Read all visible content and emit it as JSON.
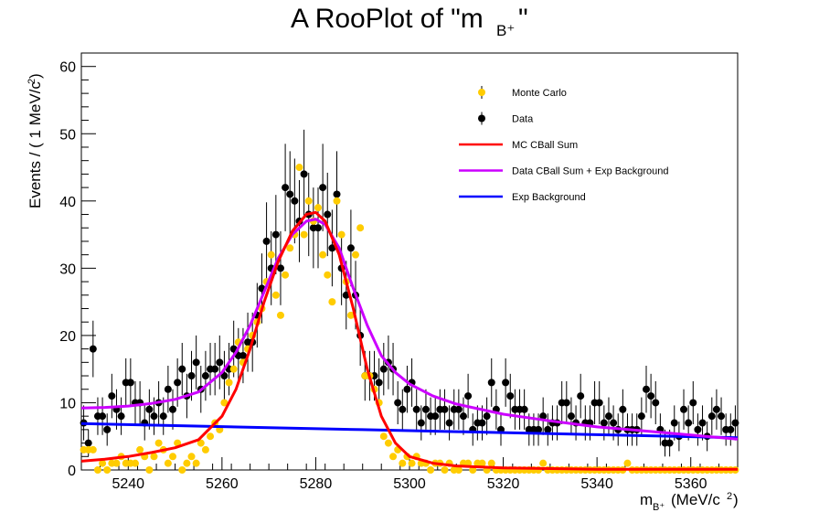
{
  "chart_data": {
    "type": "scatter",
    "title": "A RooPlot of \"m",
    "title_subscript": "B⁺",
    "title_close": "\"",
    "xlabel": "m",
    "xlabel_subscript": "B⁺",
    "xlabel_units": "(MeV/c",
    "xlabel_units_sup": "2",
    "xlabel_units_close": ")",
    "ylabel": "Events / ( 1 MeV/c",
    "ylabel_sup": "2",
    "ylabel_close": " )",
    "xlim": [
      5230,
      5370
    ],
    "ylim": [
      0,
      62
    ],
    "xticks": [
      5240,
      5260,
      5280,
      5300,
      5320,
      5340,
      5360
    ],
    "yticks": [
      0,
      10,
      20,
      30,
      40,
      50,
      60
    ],
    "legend_position": "top-right",
    "legend": [
      {
        "label": "Monte Carlo",
        "kind": "marker",
        "color": "#ffcc00"
      },
      {
        "label": "Data",
        "kind": "marker",
        "color": "#000000"
      },
      {
        "label": "MC CBall Sum",
        "kind": "line",
        "color": "#ff0000"
      },
      {
        "label": "Data CBall Sum + Exp Background",
        "kind": "line",
        "color": "#cc00ff"
      },
      {
        "label": "Exp Background",
        "kind": "line",
        "color": "#0000ff"
      }
    ],
    "series": [
      {
        "name": "Data",
        "kind": "points_with_errors",
        "color": "#000000",
        "x": [
          5230.5,
          5231.5,
          5232.5,
          5233.5,
          5234.5,
          5235.5,
          5236.5,
          5237.5,
          5238.5,
          5239.5,
          5240.5,
          5241.5,
          5242.5,
          5243.5,
          5244.5,
          5245.5,
          5246.5,
          5247.5,
          5248.5,
          5249.5,
          5250.5,
          5251.5,
          5252.5,
          5253.5,
          5254.5,
          5255.5,
          5256.5,
          5257.5,
          5258.5,
          5259.5,
          5260.5,
          5261.5,
          5262.5,
          5263.5,
          5264.5,
          5265.5,
          5266.5,
          5267.5,
          5268.5,
          5269.5,
          5270.5,
          5271.5,
          5272.5,
          5273.5,
          5274.5,
          5275.5,
          5276.5,
          5277.5,
          5278.5,
          5279.5,
          5280.5,
          5281.5,
          5282.5,
          5283.5,
          5284.5,
          5285.5,
          5286.5,
          5287.5,
          5288.5,
          5289.5,
          5290.5,
          5291.5,
          5292.5,
          5293.5,
          5294.5,
          5295.5,
          5296.5,
          5297.5,
          5298.5,
          5299.5,
          5300.5,
          5301.5,
          5302.5,
          5303.5,
          5304.5,
          5305.5,
          5306.5,
          5307.5,
          5308.5,
          5309.5,
          5310.5,
          5311.5,
          5312.5,
          5313.5,
          5314.5,
          5315.5,
          5316.5,
          5317.5,
          5318.5,
          5319.5,
          5320.5,
          5321.5,
          5322.5,
          5323.5,
          5324.5,
          5325.5,
          5326.5,
          5327.5,
          5328.5,
          5329.5,
          5330.5,
          5331.5,
          5332.5,
          5333.5,
          5334.5,
          5335.5,
          5336.5,
          5337.5,
          5338.5,
          5339.5,
          5340.5,
          5341.5,
          5342.5,
          5343.5,
          5344.5,
          5345.5,
          5346.5,
          5347.5,
          5348.5,
          5349.5,
          5350.5,
          5351.5,
          5352.5,
          5353.5,
          5354.5,
          5355.5,
          5356.5,
          5357.5,
          5358.5,
          5359.5,
          5360.5,
          5361.5,
          5362.5,
          5363.5,
          5364.5,
          5365.5,
          5366.5,
          5367.5,
          5368.5,
          5369.5
        ],
        "y": [
          7,
          4,
          18,
          8,
          8,
          6,
          11,
          9,
          8,
          13,
          13,
          10,
          10,
          7,
          9,
          8,
          10,
          8,
          12,
          9,
          13,
          15,
          11,
          14,
          16,
          12,
          14,
          15,
          15,
          16,
          14,
          15,
          18,
          17,
          17,
          19,
          19,
          23,
          27,
          34,
          30,
          35,
          30,
          42,
          41,
          40,
          37,
          44,
          38,
          36,
          36,
          42,
          38,
          33,
          41,
          30,
          26,
          33,
          26,
          20,
          14,
          14,
          14,
          13,
          15,
          16,
          15,
          10,
          9,
          12,
          13,
          9,
          7,
          9,
          8,
          8,
          9,
          9,
          7,
          9,
          9,
          8,
          11,
          6,
          7,
          7,
          8,
          13,
          9,
          6,
          13,
          11,
          9,
          9,
          9,
          6,
          6,
          6,
          8,
          6,
          7,
          7,
          10,
          10,
          8,
          7,
          11,
          7,
          7,
          10,
          10,
          7,
          8,
          7,
          6,
          9,
          6,
          6,
          6,
          8,
          12,
          11,
          10,
          6,
          4,
          4,
          7,
          5,
          9,
          7,
          10,
          6,
          7,
          5,
          8,
          9,
          8,
          6,
          6,
          7
        ],
        "yerr": [
          2.6,
          2.0,
          4.2,
          2.8,
          2.8,
          2.4,
          3.3,
          3.0,
          2.8,
          3.6,
          3.6,
          3.2,
          3.2,
          2.6,
          3.0,
          2.8,
          3.2,
          2.8,
          3.5,
          3.0,
          3.6,
          3.9,
          3.3,
          3.7,
          4.0,
          3.5,
          3.7,
          3.9,
          3.9,
          4.0,
          3.7,
          3.9,
          4.2,
          4.1,
          4.1,
          4.4,
          4.4,
          4.8,
          5.2,
          5.8,
          5.5,
          5.9,
          5.5,
          6.5,
          6.4,
          6.3,
          6.1,
          6.6,
          6.2,
          6.0,
          6.0,
          6.5,
          6.2,
          5.7,
          6.4,
          5.5,
          5.1,
          5.7,
          5.1,
          4.5,
          3.7,
          3.7,
          3.7,
          3.6,
          3.9,
          4.0,
          3.9,
          3.2,
          3.0,
          3.5,
          3.6,
          3.0,
          2.6,
          3.0,
          2.8,
          2.8,
          3.0,
          3.0,
          2.6,
          3.0,
          3.0,
          2.8,
          3.3,
          2.4,
          2.6,
          2.6,
          2.8,
          3.6,
          3.0,
          2.4,
          3.6,
          3.3,
          3.0,
          3.0,
          3.0,
          2.4,
          2.4,
          2.4,
          2.8,
          2.4,
          2.6,
          2.6,
          3.2,
          3.2,
          2.8,
          2.6,
          3.3,
          2.6,
          2.6,
          3.2,
          3.2,
          2.6,
          2.8,
          2.6,
          2.4,
          3.0,
          2.4,
          2.4,
          2.4,
          2.8,
          3.5,
          3.3,
          3.2,
          2.4,
          2.0,
          2.0,
          2.6,
          2.2,
          3.0,
          2.6,
          3.2,
          2.4,
          2.6,
          2.2,
          2.8,
          3.0,
          2.8,
          2.4,
          2.4,
          2.6
        ]
      },
      {
        "name": "Monte Carlo",
        "kind": "points",
        "color": "#ffcc00",
        "x": [
          5230.5,
          5231.5,
          5232.5,
          5233.5,
          5234.5,
          5235.5,
          5236.5,
          5237.5,
          5238.5,
          5239.5,
          5240.5,
          5241.5,
          5242.5,
          5243.5,
          5244.5,
          5245.5,
          5246.5,
          5247.5,
          5248.5,
          5249.5,
          5250.5,
          5251.5,
          5252.5,
          5253.5,
          5254.5,
          5255.5,
          5256.5,
          5257.5,
          5258.5,
          5259.5,
          5260.5,
          5261.5,
          5262.5,
          5263.5,
          5264.5,
          5265.5,
          5266.5,
          5267.5,
          5268.5,
          5269.5,
          5270.5,
          5271.5,
          5272.5,
          5273.5,
          5274.5,
          5275.5,
          5276.5,
          5277.5,
          5278.5,
          5279.5,
          5280.5,
          5281.5,
          5282.5,
          5283.5,
          5284.5,
          5285.5,
          5286.5,
          5287.5,
          5288.5,
          5289.5,
          5290.5,
          5291.5,
          5292.5,
          5293.5,
          5294.5,
          5295.5,
          5296.5,
          5297.5,
          5298.5,
          5299.5,
          5300.5,
          5301.5,
          5302.5,
          5303.5,
          5304.5,
          5305.5,
          5306.5,
          5307.5,
          5308.5,
          5309.5,
          5310.5,
          5311.5,
          5312.5,
          5313.5,
          5314.5,
          5315.5,
          5316.5,
          5317.5,
          5318.5,
          5319.5,
          5320.5,
          5321.5,
          5322.5,
          5323.5,
          5324.5,
          5325.5,
          5326.5,
          5327.5,
          5328.5,
          5329.5,
          5330.5,
          5331.5,
          5332.5,
          5333.5,
          5334.5,
          5335.5,
          5336.5,
          5337.5,
          5338.5,
          5339.5,
          5340.5,
          5341.5,
          5342.5,
          5343.5,
          5344.5,
          5345.5,
          5346.5,
          5347.5,
          5348.5,
          5349.5,
          5350.5,
          5351.5,
          5352.5,
          5353.5,
          5354.5,
          5355.5,
          5356.5,
          5357.5,
          5358.5,
          5359.5,
          5360.5,
          5361.5,
          5362.5,
          5363.5,
          5364.5,
          5365.5,
          5366.5,
          5367.5,
          5368.5,
          5369.5
        ],
        "y": [
          3,
          3,
          3,
          0,
          1,
          0,
          1,
          1,
          2,
          1,
          1,
          1,
          3,
          2,
          0,
          2,
          4,
          3,
          1,
          2,
          4,
          0,
          1,
          2,
          1,
          4,
          3,
          5,
          7,
          6,
          10,
          13,
          15,
          19,
          16,
          18,
          20,
          22,
          24,
          28,
          32,
          26,
          23,
          29,
          33,
          35,
          45,
          35,
          40,
          37,
          39,
          32,
          29,
          25,
          40,
          35,
          28,
          23,
          32,
          36,
          14,
          14,
          12,
          10,
          5,
          4,
          2,
          3,
          1,
          2,
          1,
          2,
          1,
          1,
          0,
          1,
          1,
          0,
          1,
          0,
          0,
          1,
          1,
          0,
          1,
          1,
          0,
          1,
          0,
          0,
          0,
          0,
          0,
          0,
          0,
          0,
          0,
          0,
          1,
          0,
          0,
          0,
          0,
          0,
          0,
          0,
          0,
          0,
          0,
          0,
          0,
          0,
          0,
          0,
          0,
          0,
          1,
          0,
          0,
          0,
          0,
          0,
          0,
          0,
          0,
          0,
          0,
          0,
          0,
          0,
          0,
          0,
          0,
          0,
          0,
          0,
          0,
          0,
          0,
          0
        ]
      },
      {
        "name": "MC CBall Sum",
        "kind": "curve",
        "color": "#ff0000",
        "x": [
          5230,
          5235,
          5240,
          5245,
          5250,
          5255,
          5260,
          5263,
          5266,
          5269,
          5272,
          5275,
          5278,
          5280,
          5282,
          5285,
          5288,
          5291,
          5294,
          5297,
          5300,
          5305,
          5310,
          5320,
          5330,
          5340,
          5350,
          5360,
          5370
        ],
        "y": [
          1.3,
          1.6,
          2.0,
          2.6,
          3.3,
          4.5,
          8.0,
          12.0,
          18.0,
          25.0,
          31.0,
          35.5,
          38.0,
          38.3,
          37.0,
          32.0,
          24.0,
          15.0,
          8.0,
          4.0,
          2.0,
          1.0,
          0.6,
          0.3,
          0.2,
          0.1,
          0.1,
          0.1,
          0.1
        ]
      },
      {
        "name": "Data CBall Sum + Exp Background",
        "kind": "curve",
        "color": "#cc00ff",
        "x": [
          5230,
          5235,
          5240,
          5245,
          5250,
          5255,
          5260,
          5263,
          5266,
          5269,
          5272,
          5275,
          5278,
          5280,
          5282,
          5285,
          5288,
          5291,
          5294,
          5297,
          5300,
          5305,
          5310,
          5320,
          5330,
          5340,
          5350,
          5360,
          5370
        ],
        "y": [
          9.2,
          9.3,
          9.5,
          9.9,
          10.5,
          11.6,
          14.5,
          17.5,
          21.5,
          26.5,
          31.5,
          35.0,
          37.0,
          37.3,
          36.5,
          33.0,
          27.0,
          21.5,
          17.0,
          14.5,
          12.8,
          11.0,
          9.8,
          8.3,
          7.3,
          6.4,
          5.8,
          5.2,
          4.6
        ]
      },
      {
        "name": "Exp Background",
        "kind": "curve",
        "color": "#0000ff",
        "x": [
          5230,
          5250,
          5270,
          5290,
          5310,
          5330,
          5350,
          5370
        ],
        "y": [
          6.9,
          6.6,
          6.3,
          6.0,
          5.7,
          5.4,
          5.1,
          4.8
        ]
      }
    ]
  }
}
